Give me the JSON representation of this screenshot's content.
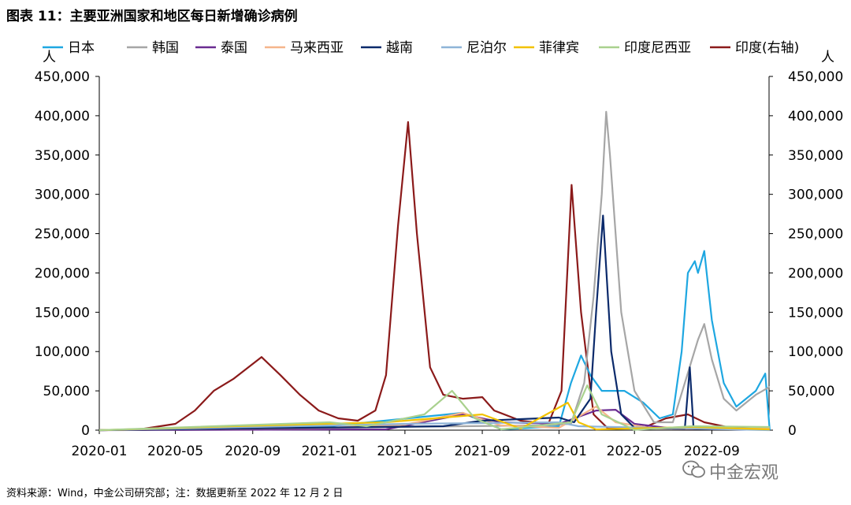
{
  "figure_title": "图表 11：主要亚洲国家和地区每日新增确诊病例",
  "footnote": "资料来源：Wind，中金公司研究部；注：数据更新至 2022 年 12 月 2 日",
  "watermark": "中金宏观",
  "colors": {
    "日本": "#1ea7e1",
    "韩国": "#a6a6a6",
    "泰国": "#6a2c91",
    "马来西亚": "#f5b58b",
    "越南": "#0b2a6b",
    "尼泊尔": "#8eb4d8",
    "菲律宾": "#f2c200",
    "印度尼西亚": "#a9d18e",
    "印度(右轴)": "#8b1a1a"
  },
  "chart_data": {
    "type": "line",
    "y_unit_left": "人",
    "y_unit_right": "人",
    "ylim": [
      0,
      450000
    ],
    "y_ticks": [
      "0",
      "50,000",
      "100,000",
      "150,000",
      "200,000",
      "250,000",
      "300,000",
      "350,000",
      "400,000",
      "450,000"
    ],
    "x_range": [
      "2020-01",
      "2022-12"
    ],
    "x_ticks": [
      "2020-01",
      "2020-05",
      "2020-09",
      "2021-01",
      "2021-05",
      "2021-09",
      "2022-01",
      "2022-05",
      "2022-09"
    ],
    "legend_position": "top",
    "series": [
      {
        "name": "日本",
        "points": [
          [
            "2020-01",
            0
          ],
          [
            "2021-01",
            5000
          ],
          [
            "2021-08",
            22000
          ],
          [
            "2021-10",
            1000
          ],
          [
            "2022-01",
            5000
          ],
          [
            "2022-01-20",
            60000
          ],
          [
            "2022-02-05",
            95000
          ],
          [
            "2022-02-20",
            70000
          ],
          [
            "2022-03-10",
            50000
          ],
          [
            "2022-04-15",
            50000
          ],
          [
            "2022-05-15",
            35000
          ],
          [
            "2022-06-10",
            15000
          ],
          [
            "2022-07-01",
            20000
          ],
          [
            "2022-07-15",
            100000
          ],
          [
            "2022-07-25",
            200000
          ],
          [
            "2022-08-05",
            215000
          ],
          [
            "2022-08-10",
            200000
          ],
          [
            "2022-08-20",
            228000
          ],
          [
            "2022-09-01",
            140000
          ],
          [
            "2022-09-20",
            60000
          ],
          [
            "2022-10-10",
            30000
          ],
          [
            "2022-11-10",
            50000
          ],
          [
            "2022-11-25",
            72000
          ],
          [
            "2022-12-02",
            0
          ]
        ]
      },
      {
        "name": "韩国",
        "points": [
          [
            "2020-01",
            0
          ],
          [
            "2021-12",
            6000
          ],
          [
            "2022-01-20",
            8000
          ],
          [
            "2022-02-10",
            60000
          ],
          [
            "2022-02-25",
            170000
          ],
          [
            "2022-03-10",
            300000
          ],
          [
            "2022-03-17",
            405000
          ],
          [
            "2022-03-23",
            350000
          ],
          [
            "2022-04-10",
            150000
          ],
          [
            "2022-05-01",
            50000
          ],
          [
            "2022-06-01",
            10000
          ],
          [
            "2022-07-01",
            10000
          ],
          [
            "2022-07-20",
            60000
          ],
          [
            "2022-08-10",
            115000
          ],
          [
            "2022-08-20",
            135000
          ],
          [
            "2022-09-01",
            90000
          ],
          [
            "2022-09-20",
            40000
          ],
          [
            "2022-10-10",
            25000
          ],
          [
            "2022-11-10",
            45000
          ],
          [
            "2022-12-02",
            55000
          ]
        ]
      },
      {
        "name": "泰国",
        "points": [
          [
            "2020-01",
            0
          ],
          [
            "2021-04",
            1000
          ],
          [
            "2021-08",
            20000
          ],
          [
            "2021-10",
            10000
          ],
          [
            "2022-01",
            8000
          ],
          [
            "2022-03",
            25000
          ],
          [
            "2022-04",
            26000
          ],
          [
            "2022-05",
            8000
          ],
          [
            "2022-07",
            2000
          ],
          [
            "2022-12-02",
            500
          ]
        ]
      },
      {
        "name": "马来西亚",
        "points": [
          [
            "2020-01",
            0
          ],
          [
            "2021-01",
            3000
          ],
          [
            "2021-05",
            7000
          ],
          [
            "2021-08",
            22000
          ],
          [
            "2021-10",
            6000
          ],
          [
            "2022-01",
            3000
          ],
          [
            "2022-03",
            30000
          ],
          [
            "2022-04",
            10000
          ],
          [
            "2022-06",
            2000
          ],
          [
            "2022-12-02",
            2000
          ]
        ]
      },
      {
        "name": "越南",
        "points": [
          [
            "2020-01",
            0
          ],
          [
            "2021-07",
            5000
          ],
          [
            "2021-09",
            12000
          ],
          [
            "2021-11",
            14000
          ],
          [
            "2022-01-01",
            16000
          ],
          [
            "2022-01-25",
            10000
          ],
          [
            "2022-02-20",
            40000
          ],
          [
            "2022-03-01",
            150000
          ],
          [
            "2022-03-12",
            273000
          ],
          [
            "2022-03-25",
            100000
          ],
          [
            "2022-04-10",
            20000
          ],
          [
            "2022-05-01",
            3000
          ],
          [
            "2022-07-20",
            2000
          ],
          [
            "2022-07-28",
            80000
          ],
          [
            "2022-08-03",
            2000
          ],
          [
            "2022-12-02",
            500
          ]
        ]
      },
      {
        "name": "尼泊尔",
        "points": [
          [
            "2020-01",
            0
          ],
          [
            "2021-05",
            8000
          ],
          [
            "2022-01",
            10000
          ],
          [
            "2022-02",
            5000
          ],
          [
            "2022-12-02",
            0
          ]
        ]
      },
      {
        "name": "菲律宾",
        "points": [
          [
            "2020-01",
            0
          ],
          [
            "2020-08",
            5000
          ],
          [
            "2021-04",
            10000
          ],
          [
            "2021-09",
            20000
          ],
          [
            "2021-11",
            2000
          ],
          [
            "2022-01-15",
            35000
          ],
          [
            "2022-02-01",
            10000
          ],
          [
            "2022-03",
            1000
          ],
          [
            "2022-08",
            4000
          ],
          [
            "2022-12-02",
            1000
          ]
        ]
      },
      {
        "name": "印度尼西亚",
        "points": [
          [
            "2020-01",
            0
          ],
          [
            "2021-01",
            10000
          ],
          [
            "2021-03",
            5000
          ],
          [
            "2021-06",
            20000
          ],
          [
            "2021-07-15",
            50000
          ],
          [
            "2021-08-20",
            15000
          ],
          [
            "2021-10",
            1000
          ],
          [
            "2022-01-20",
            10000
          ],
          [
            "2022-02-15",
            57000
          ],
          [
            "2022-03-10",
            20000
          ],
          [
            "2022-05",
            300
          ],
          [
            "2022-08",
            5000
          ],
          [
            "2022-12-02",
            4000
          ]
        ]
      },
      {
        "name": "印度(右轴)",
        "points": [
          [
            "2020-01",
            0
          ],
          [
            "2020-03",
            500
          ],
          [
            "2020-05",
            8000
          ],
          [
            "2020-06",
            25000
          ],
          [
            "2020-07",
            50000
          ],
          [
            "2020-08",
            65000
          ],
          [
            "2020-09-15",
            93000
          ],
          [
            "2020-10-15",
            70000
          ],
          [
            "2020-11-15",
            45000
          ],
          [
            "2020-12-15",
            25000
          ],
          [
            "2021-01-15",
            15000
          ],
          [
            "2021-02-15",
            12000
          ],
          [
            "2021-03-15",
            25000
          ],
          [
            "2021-04-01",
            70000
          ],
          [
            "2021-04-20",
            260000
          ],
          [
            "2021-05-06",
            392000
          ],
          [
            "2021-05-20",
            250000
          ],
          [
            "2021-06-10",
            80000
          ],
          [
            "2021-07-01",
            45000
          ],
          [
            "2021-08-01",
            40000
          ],
          [
            "2021-09-01",
            42000
          ],
          [
            "2021-09-20",
            25000
          ],
          [
            "2021-11-01",
            12000
          ],
          [
            "2021-12-15",
            8000
          ],
          [
            "2022-01-05",
            50000
          ],
          [
            "2022-01-21",
            312000
          ],
          [
            "2022-02-05",
            150000
          ],
          [
            "2022-02-25",
            20000
          ],
          [
            "2022-03-20",
            2000
          ],
          [
            "2022-05-15",
            3000
          ],
          [
            "2022-06-20",
            15000
          ],
          [
            "2022-07-25",
            20000
          ],
          [
            "2022-08-20",
            10000
          ],
          [
            "2022-10-01",
            3000
          ],
          [
            "2022-12-02",
            1000
          ]
        ]
      }
    ]
  }
}
